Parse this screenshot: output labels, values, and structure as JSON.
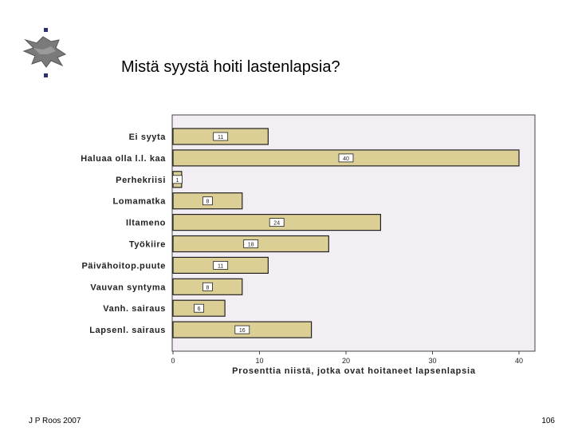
{
  "slide": {
    "title": "Mistä syystä hoiti lastenlapsia?",
    "footer_author": "J P Roos 2007",
    "page_number": "106"
  },
  "logo": {
    "icon": "university-lion-logo-icon",
    "color": "#6b6b6b",
    "accent": "#2c2f6e"
  },
  "colors": {
    "plot_background": "#f3eef4",
    "bar_fill": "#dccf96",
    "bar_stroke": "#222222"
  },
  "chart_data": {
    "type": "bar",
    "orientation": "horizontal",
    "categories": [
      "Ei syyta",
      "Haluaa olla l.l. kaa",
      "Perhekriisi",
      "Lomamatka",
      "Iltameno",
      "Työkiire",
      "Päivähoitop.puute",
      "Vauvan syntyma",
      "Vanh. sairaus",
      "Lapsenl. sairaus"
    ],
    "values": [
      11,
      40,
      1,
      8,
      24,
      18,
      11,
      8,
      6,
      16
    ],
    "data_labels": [
      "11",
      "40",
      "1",
      "8",
      "24",
      "18",
      "11",
      "8",
      "6",
      "16"
    ],
    "xlim": [
      0,
      42
    ],
    "xticks": [
      0,
      10,
      20,
      30,
      40
    ],
    "xtick_labels": [
      "0",
      "10",
      "20",
      "30",
      "40"
    ],
    "xlabel": "Prosenttia niistä, jotka ovat hoitaneet lapsenlapsia",
    "ylabel": "",
    "title": "",
    "grid": false,
    "legend": "none"
  }
}
